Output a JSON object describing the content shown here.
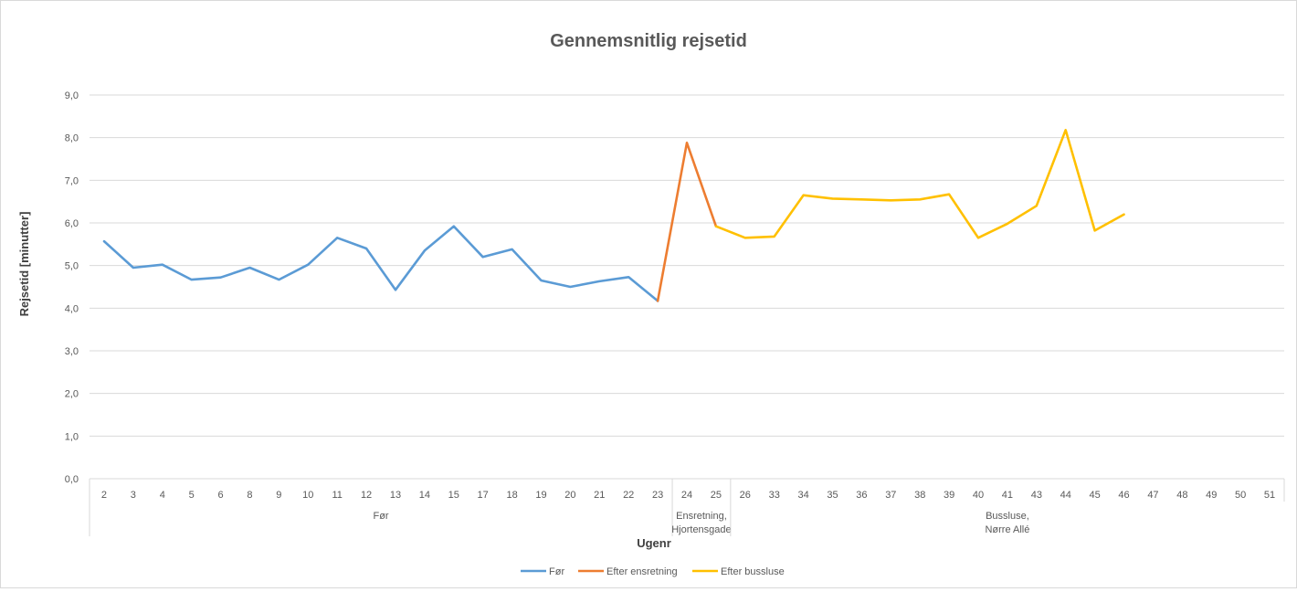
{
  "chart_data": {
    "type": "line",
    "title": "Gennemsnitlig rejsetid",
    "xlabel": "Ugenr",
    "ylabel": "Rejsetid [minutter]",
    "ylim": [
      0,
      9
    ],
    "ytick_step": 1,
    "ytick_labels": [
      "0,0",
      "1,0",
      "2,0",
      "3,0",
      "4,0",
      "5,0",
      "6,0",
      "7,0",
      "8,0",
      "9,0"
    ],
    "grid": true,
    "legend_position": "bottom",
    "categories": [
      "2",
      "3",
      "4",
      "5",
      "6",
      "8",
      "9",
      "10",
      "11",
      "12",
      "13",
      "14",
      "15",
      "17",
      "18",
      "19",
      "20",
      "21",
      "22",
      "23",
      "24",
      "25",
      "26",
      "33",
      "34",
      "35",
      "36",
      "37",
      "38",
      "39",
      "40",
      "41",
      "43",
      "44",
      "45",
      "46",
      "47",
      "48",
      "49",
      "50",
      "51"
    ],
    "groups": [
      {
        "label": "Før",
        "lines": [
          "Før"
        ],
        "count": 20
      },
      {
        "label": "Ensretning, Hjortensgade",
        "lines": [
          "Ensretning,",
          "Hjortensgade"
        ],
        "count": 2
      },
      {
        "label": "Bussluse, Nørre Allé",
        "lines": [
          "Bussluse,",
          "Nørre Allé"
        ],
        "count": 19
      }
    ],
    "series": [
      {
        "name": "Før",
        "color": "#5B9BD5",
        "values": [
          5.57,
          4.95,
          5.02,
          4.67,
          4.72,
          4.95,
          4.67,
          5.02,
          5.65,
          5.4,
          4.43,
          5.35,
          5.92,
          5.2,
          5.38,
          4.65,
          4.5,
          4.63,
          4.73,
          4.17,
          null,
          null,
          null,
          null,
          null,
          null,
          null,
          null,
          null,
          null,
          null,
          null,
          null,
          null,
          null,
          null,
          null,
          null,
          null,
          null,
          null
        ]
      },
      {
        "name": "Efter ensretning",
        "color": "#ED7D31",
        "values": [
          null,
          null,
          null,
          null,
          null,
          null,
          null,
          null,
          null,
          null,
          null,
          null,
          null,
          null,
          null,
          null,
          null,
          null,
          null,
          4.17,
          7.88,
          5.92,
          null,
          null,
          null,
          null,
          null,
          null,
          null,
          null,
          null,
          null,
          null,
          null,
          null,
          null,
          null,
          null,
          null,
          null,
          null
        ]
      },
      {
        "name": "Efter bussluse",
        "color": "#FFC000",
        "values": [
          null,
          null,
          null,
          null,
          null,
          null,
          null,
          null,
          null,
          null,
          null,
          null,
          null,
          null,
          null,
          null,
          null,
          null,
          null,
          null,
          null,
          5.92,
          5.65,
          5.68,
          6.65,
          6.57,
          6.55,
          6.53,
          6.55,
          6.67,
          5.65,
          5.98,
          6.4,
          8.18,
          5.82,
          6.2,
          null,
          null,
          null,
          null,
          null
        ]
      }
    ]
  }
}
